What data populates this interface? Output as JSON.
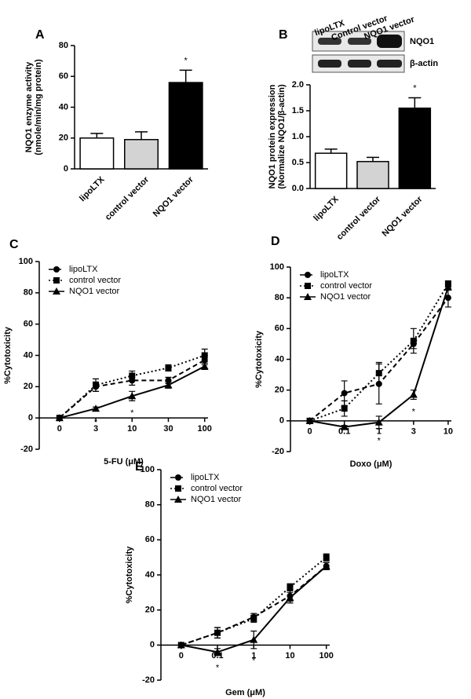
{
  "chart_data": [
    {
      "type": "bar",
      "label": "A",
      "ylabel": [
        "NQO1 enzyme activity",
        "(nmole/min/mg protein)"
      ],
      "categories": [
        "lipoLTX",
        "control vector",
        "NQO1 vector"
      ],
      "values": [
        20,
        19,
        56
      ],
      "errors": [
        3,
        5,
        8
      ],
      "colors": [
        "#ffffff",
        "#d3d3d3",
        "#000000"
      ],
      "ylim": [
        0,
        80
      ],
      "yticks": [
        0,
        20,
        40,
        60,
        80
      ],
      "annotations": [
        {
          "text": "*",
          "x": "NQO1 vector"
        }
      ]
    },
    {
      "type": "bar",
      "label": "B",
      "ylabel": [
        "NQO1 protein expression",
        "(Normalize NQO1/β-actin)"
      ],
      "categories": [
        "lipoLTX",
        "control vector",
        "NQO1 vector"
      ],
      "values": [
        0.68,
        0.52,
        1.55
      ],
      "errors": [
        0.08,
        0.08,
        0.2
      ],
      "colors": [
        "#ffffff",
        "#d3d3d3",
        "#000000"
      ],
      "ylim": [
        0,
        2
      ],
      "yticks": [
        {
          "value": 0,
          "label": "0.0"
        },
        {
          "value": 0.5,
          "label": "0.5"
        },
        {
          "value": 1,
          "label": "1.0"
        },
        {
          "value": 1.5,
          "label": "1.5"
        },
        {
          "value": 2,
          "label": "2.0"
        }
      ],
      "annotations": [
        {
          "text": "*",
          "x": "NQO1 vector"
        }
      ],
      "blot": {
        "lanes": [
          "lipoLTX",
          "Control vector",
          "NQO1 vector"
        ],
        "bands": [
          "NQO1",
          "β-actin"
        ]
      }
    },
    {
      "type": "line",
      "label": "C",
      "xlabel": "5-FU (μM)",
      "ylabel": "%Cytotoxicity",
      "categories": [
        "0",
        "3",
        "10",
        "30",
        "100"
      ],
      "ylim": [
        -20,
        100
      ],
      "yticks": [
        -20,
        0,
        20,
        40,
        60,
        80,
        100
      ],
      "series": [
        {
          "name": "lipoLTX",
          "color": "#000000",
          "marker": "circle",
          "dash": "dashed",
          "values": [
            0,
            20,
            24,
            24,
            37
          ],
          "errors": [
            0,
            3,
            3,
            2,
            3
          ]
        },
        {
          "name": "control vector",
          "color": "#000000",
          "marker": "square",
          "dash": "dotted",
          "values": [
            0,
            21,
            27,
            32,
            40
          ],
          "errors": [
            0,
            4,
            3,
            2,
            4
          ]
        },
        {
          "name": "NQO1 vector",
          "color": "#000000",
          "marker": "triangle",
          "dash": "solid",
          "values": [
            0,
            6,
            14,
            21,
            33
          ],
          "errors": [
            0,
            1,
            3,
            2,
            2
          ]
        }
      ],
      "annotations": [
        {
          "text": "*",
          "x": "3"
        },
        {
          "text": "*",
          "x": "10"
        }
      ]
    },
    {
      "type": "line",
      "label": "D",
      "xlabel": "Doxo (μM)",
      "ylabel": "%Cytotoxicity",
      "categories": [
        "0",
        "0.1",
        "1",
        "3",
        "10"
      ],
      "ylim": [
        -20,
        100
      ],
      "yticks": [
        -20,
        0,
        20,
        40,
        60,
        80,
        100
      ],
      "series": [
        {
          "name": "lipoLTX",
          "color": "#000000",
          "marker": "circle",
          "dash": "dashed",
          "values": [
            0,
            18,
            24,
            50,
            80
          ],
          "errors": [
            0,
            8,
            13,
            3,
            6
          ]
        },
        {
          "name": "control vector",
          "color": "#000000",
          "marker": "square",
          "dash": "dotted",
          "values": [
            0,
            8,
            31,
            52,
            89
          ],
          "errors": [
            0,
            5,
            7,
            8,
            2
          ]
        },
        {
          "name": "NQO1 vector",
          "color": "#000000",
          "marker": "triangle",
          "dash": "solid",
          "values": [
            0,
            -4,
            -1,
            17,
            87
          ],
          "errors": [
            0,
            1,
            4,
            3,
            2
          ]
        }
      ],
      "annotations": [
        {
          "text": "*",
          "x": "1"
        },
        {
          "text": "*",
          "x": "3"
        }
      ]
    },
    {
      "type": "line",
      "label": "E",
      "xlabel": "Gem (μM)",
      "ylabel": "%Cytotoxicity",
      "categories": [
        "0",
        "0.1",
        "1",
        "10",
        "100"
      ],
      "ylim": [
        -20,
        100
      ],
      "yticks": [
        -20,
        0,
        20,
        40,
        60,
        80,
        100
      ],
      "series": [
        {
          "name": "lipoLTX",
          "color": "#000000",
          "marker": "circle",
          "dash": "dashed",
          "values": [
            0,
            7,
            16,
            28,
            45
          ],
          "errors": [
            0,
            3,
            2,
            3,
            2
          ]
        },
        {
          "name": "control vector",
          "color": "#000000",
          "marker": "square",
          "dash": "dotted",
          "values": [
            0,
            7,
            15,
            33,
            50
          ],
          "errors": [
            0,
            3,
            2,
            2,
            2
          ]
        },
        {
          "name": "NQO1 vector",
          "color": "#000000",
          "marker": "triangle",
          "dash": "solid",
          "values": [
            0,
            -4,
            3,
            27,
            45
          ],
          "errors": [
            0,
            2,
            5,
            3,
            2
          ]
        }
      ],
      "annotations": [
        {
          "text": "*",
          "x": "0.1"
        },
        {
          "text": "*",
          "x": "1"
        }
      ]
    }
  ]
}
